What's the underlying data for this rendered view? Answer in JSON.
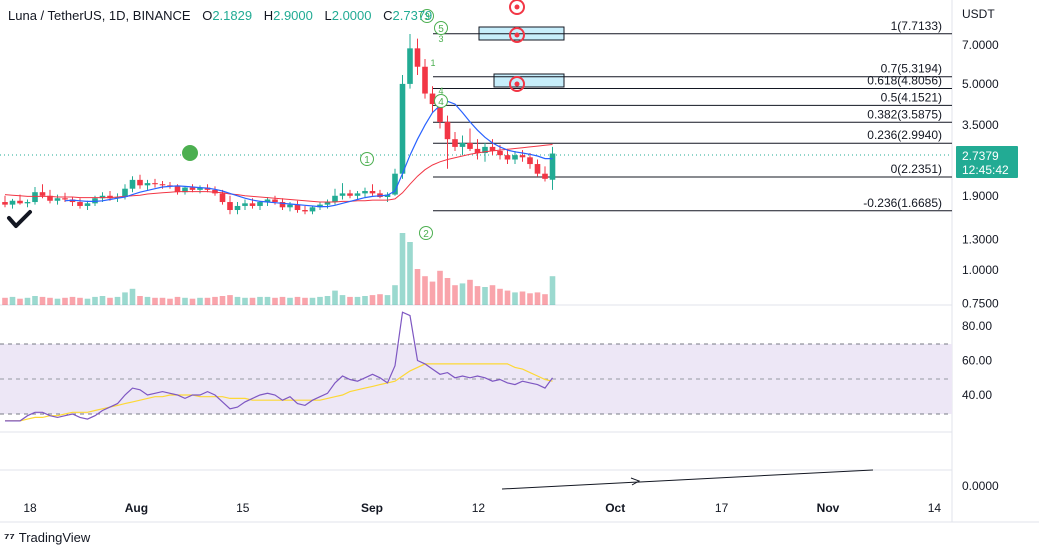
{
  "legend": {
    "symbol": "Luna / TetherUS, 1D, BINANCE",
    "open_label": "O",
    "open": "2.1829",
    "high_label": "H",
    "high": "2.9000",
    "low_label": "L",
    "low": "2.0000",
    "close_label": "C",
    "close": "2.7379"
  },
  "branding": {
    "name": "TradingView"
  },
  "price_badge": {
    "price": "2.7379",
    "countdown": "12:45:42"
  },
  "currency": "USDT",
  "colors": {
    "up": "#22ab94",
    "down": "#f23645",
    "blue_ma": "#2962ff",
    "red_ma": "#f23645",
    "rsi": "#7e57c2",
    "rsi_ma": "#fdd835",
    "rsi_band": "#ede7f6",
    "fib_box": "#c7eefb"
  },
  "chart_data": {
    "type": "candlestick",
    "title": "Luna / TetherUS, 1D, BINANCE",
    "price_axis_ticks": [
      "7.0000",
      "5.0000",
      "3.5000",
      "2.7379",
      "1.9000",
      "1.3000",
      "1.0000",
      "0.7500"
    ],
    "price_ticks_numeric": [
      7.0,
      5.0,
      3.5,
      2.7379,
      1.9,
      1.3,
      1.0,
      0.75
    ],
    "rsi_axis_ticks": [
      "80.00",
      "60.00",
      "40.00"
    ],
    "rsi_ticks_numeric": [
      80,
      60,
      40
    ],
    "lower_axis_ticks": [
      "0.0000"
    ],
    "x_tick_labels": [
      "18",
      "Aug",
      "15",
      "Sep",
      "12",
      "Oct",
      "17",
      "Nov",
      "14"
    ],
    "x_tick_days": [
      0,
      14,
      28,
      45,
      59,
      77,
      91,
      105,
      119
    ],
    "fib_levels": [
      {
        "label": "1(7.7133)",
        "value": 7.7133
      },
      {
        "label": "0.7(5.3194)",
        "value": 5.3194
      },
      {
        "label": "0.618(4.8056)",
        "value": 4.8056
      },
      {
        "label": "0.5(4.1521)",
        "value": 4.1521
      },
      {
        "label": "0.382(3.5875)",
        "value": 3.5875
      },
      {
        "label": "0.236(2.9940)",
        "value": 2.994
      },
      {
        "label": "0(2.2351)",
        "value": 2.2351
      },
      {
        "label": "-0.236(1.6685)",
        "value": 1.6685
      }
    ],
    "wave_labels": [
      "1",
      "2",
      "3",
      "4",
      "5",
      "3",
      "4",
      "1"
    ],
    "candles": [
      {
        "o": 1.8,
        "h": 1.9,
        "l": 1.72,
        "c": 1.76
      },
      {
        "o": 1.76,
        "h": 1.85,
        "l": 1.7,
        "c": 1.82
      },
      {
        "o": 1.82,
        "h": 1.92,
        "l": 1.76,
        "c": 1.78
      },
      {
        "o": 1.78,
        "h": 1.84,
        "l": 1.72,
        "c": 1.8
      },
      {
        "o": 1.8,
        "h": 2.05,
        "l": 1.76,
        "c": 1.96
      },
      {
        "o": 1.96,
        "h": 2.1,
        "l": 1.86,
        "c": 1.9
      },
      {
        "o": 1.9,
        "h": 2.0,
        "l": 1.78,
        "c": 1.82
      },
      {
        "o": 1.82,
        "h": 1.92,
        "l": 1.76,
        "c": 1.86
      },
      {
        "o": 1.86,
        "h": 1.95,
        "l": 1.8,
        "c": 1.84
      },
      {
        "o": 1.84,
        "h": 1.88,
        "l": 1.74,
        "c": 1.8
      },
      {
        "o": 1.8,
        "h": 1.86,
        "l": 1.7,
        "c": 1.74
      },
      {
        "o": 1.74,
        "h": 1.82,
        "l": 1.68,
        "c": 1.78
      },
      {
        "o": 1.78,
        "h": 1.9,
        "l": 1.74,
        "c": 1.86
      },
      {
        "o": 1.86,
        "h": 1.96,
        "l": 1.8,
        "c": 1.9
      },
      {
        "o": 1.9,
        "h": 1.98,
        "l": 1.82,
        "c": 1.86
      },
      {
        "o": 1.86,
        "h": 1.94,
        "l": 1.8,
        "c": 1.88
      },
      {
        "o": 1.88,
        "h": 2.1,
        "l": 1.84,
        "c": 2.02
      },
      {
        "o": 2.02,
        "h": 2.25,
        "l": 1.96,
        "c": 2.18
      },
      {
        "o": 2.18,
        "h": 2.28,
        "l": 2.02,
        "c": 2.08
      },
      {
        "o": 2.08,
        "h": 2.18,
        "l": 2.0,
        "c": 2.12
      },
      {
        "o": 2.12,
        "h": 2.2,
        "l": 2.04,
        "c": 2.1
      },
      {
        "o": 2.1,
        "h": 2.16,
        "l": 2.02,
        "c": 2.08
      },
      {
        "o": 2.08,
        "h": 2.14,
        "l": 2.02,
        "c": 2.06
      },
      {
        "o": 2.06,
        "h": 2.1,
        "l": 1.92,
        "c": 1.96
      },
      {
        "o": 1.96,
        "h": 2.06,
        "l": 1.92,
        "c": 2.04
      },
      {
        "o": 2.04,
        "h": 2.1,
        "l": 1.96,
        "c": 2.0
      },
      {
        "o": 2.0,
        "h": 2.08,
        "l": 1.94,
        "c": 2.04
      },
      {
        "o": 2.04,
        "h": 2.1,
        "l": 1.96,
        "c": 2.0
      },
      {
        "o": 2.0,
        "h": 2.06,
        "l": 1.9,
        "c": 1.94
      },
      {
        "o": 1.94,
        "h": 2.0,
        "l": 1.76,
        "c": 1.8
      },
      {
        "o": 1.8,
        "h": 1.9,
        "l": 1.62,
        "c": 1.68
      },
      {
        "o": 1.68,
        "h": 1.8,
        "l": 1.62,
        "c": 1.74
      },
      {
        "o": 1.74,
        "h": 1.84,
        "l": 1.68,
        "c": 1.78
      },
      {
        "o": 1.78,
        "h": 1.86,
        "l": 1.7,
        "c": 1.74
      },
      {
        "o": 1.74,
        "h": 1.82,
        "l": 1.68,
        "c": 1.8
      },
      {
        "o": 1.8,
        "h": 1.88,
        "l": 1.74,
        "c": 1.84
      },
      {
        "o": 1.84,
        "h": 1.9,
        "l": 1.76,
        "c": 1.8
      },
      {
        "o": 1.8,
        "h": 1.86,
        "l": 1.68,
        "c": 1.72
      },
      {
        "o": 1.72,
        "h": 1.8,
        "l": 1.66,
        "c": 1.76
      },
      {
        "o": 1.76,
        "h": 1.82,
        "l": 1.64,
        "c": 1.68
      },
      {
        "o": 1.68,
        "h": 1.74,
        "l": 1.62,
        "c": 1.66
      },
      {
        "o": 1.66,
        "h": 1.74,
        "l": 1.62,
        "c": 1.72
      },
      {
        "o": 1.72,
        "h": 1.8,
        "l": 1.68,
        "c": 1.76
      },
      {
        "o": 1.76,
        "h": 1.84,
        "l": 1.7,
        "c": 1.8
      },
      {
        "o": 1.8,
        "h": 2.02,
        "l": 1.76,
        "c": 1.9
      },
      {
        "o": 1.9,
        "h": 2.12,
        "l": 1.84,
        "c": 1.94
      },
      {
        "o": 1.94,
        "h": 2.0,
        "l": 1.86,
        "c": 1.9
      },
      {
        "o": 1.9,
        "h": 1.98,
        "l": 1.84,
        "c": 1.94
      },
      {
        "o": 1.94,
        "h": 2.04,
        "l": 1.88,
        "c": 1.98
      },
      {
        "o": 1.98,
        "h": 2.1,
        "l": 1.9,
        "c": 1.94
      },
      {
        "o": 1.94,
        "h": 2.0,
        "l": 1.86,
        "c": 1.88
      },
      {
        "o": 1.88,
        "h": 1.96,
        "l": 1.8,
        "c": 1.92
      },
      {
        "o": 1.92,
        "h": 2.4,
        "l": 1.9,
        "c": 2.3
      },
      {
        "o": 2.3,
        "h": 5.4,
        "l": 2.2,
        "c": 5.0
      },
      {
        "o": 5.0,
        "h": 7.7,
        "l": 4.8,
        "c": 6.8
      },
      {
        "o": 6.8,
        "h": 7.4,
        "l": 5.4,
        "c": 5.8
      },
      {
        "o": 5.8,
        "h": 6.2,
        "l": 4.4,
        "c": 4.6
      },
      {
        "o": 4.6,
        "h": 4.9,
        "l": 3.9,
        "c": 4.2
      },
      {
        "o": 4.2,
        "h": 4.4,
        "l": 3.4,
        "c": 3.6
      },
      {
        "o": 3.6,
        "h": 3.8,
        "l": 2.4,
        "c": 3.1
      },
      {
        "o": 3.1,
        "h": 3.3,
        "l": 2.8,
        "c": 2.9
      },
      {
        "o": 2.9,
        "h": 3.2,
        "l": 2.7,
        "c": 3.0
      },
      {
        "o": 3.0,
        "h": 3.4,
        "l": 2.8,
        "c": 2.85
      },
      {
        "o": 2.85,
        "h": 3.1,
        "l": 2.6,
        "c": 2.75
      },
      {
        "o": 2.75,
        "h": 3.0,
        "l": 2.55,
        "c": 2.9
      },
      {
        "o": 2.9,
        "h": 3.1,
        "l": 2.7,
        "c": 2.8
      },
      {
        "o": 2.8,
        "h": 2.95,
        "l": 2.6,
        "c": 2.7
      },
      {
        "o": 2.7,
        "h": 2.85,
        "l": 2.5,
        "c": 2.6
      },
      {
        "o": 2.6,
        "h": 2.8,
        "l": 2.5,
        "c": 2.7
      },
      {
        "o": 2.7,
        "h": 2.82,
        "l": 2.55,
        "c": 2.65
      },
      {
        "o": 2.65,
        "h": 2.75,
        "l": 2.4,
        "c": 2.5
      },
      {
        "o": 2.5,
        "h": 2.6,
        "l": 2.25,
        "c": 2.3
      },
      {
        "o": 2.3,
        "h": 2.45,
        "l": 2.15,
        "c": 2.2
      },
      {
        "o": 2.1829,
        "h": 2.9,
        "l": 2.0,
        "c": 2.7379
      }
    ],
    "volume": [
      0.8,
      0.9,
      0.7,
      0.8,
      1.0,
      0.9,
      0.8,
      0.7,
      0.8,
      0.9,
      0.8,
      0.7,
      0.9,
      1.0,
      0.8,
      0.9,
      1.4,
      1.8,
      1.0,
      0.9,
      0.8,
      0.8,
      0.7,
      0.9,
      0.8,
      0.7,
      0.8,
      0.8,
      0.9,
      1.0,
      1.1,
      0.9,
      0.8,
      0.8,
      0.9,
      0.9,
      0.8,
      0.9,
      0.8,
      0.9,
      0.8,
      0.8,
      0.9,
      1.0,
      1.6,
      1.1,
      0.9,
      0.9,
      1.0,
      1.1,
      1.2,
      1.1,
      2.2,
      8.0,
      7.0,
      4.0,
      3.2,
      2.6,
      3.8,
      3.0,
      2.2,
      2.4,
      2.8,
      2.1,
      2.0,
      2.2,
      1.8,
      1.6,
      1.4,
      1.5,
      1.3,
      1.4,
      1.2,
      3.2
    ],
    "rsi": [
      25,
      25,
      25,
      28,
      30,
      30,
      28,
      27,
      28,
      29,
      27,
      26,
      28,
      31,
      33,
      35,
      40,
      44,
      43,
      40,
      41,
      42,
      41,
      40,
      38,
      40,
      40,
      42,
      40,
      36,
      32,
      33,
      36,
      38,
      40,
      41,
      40,
      37,
      39,
      35,
      34,
      37,
      39,
      41,
      47,
      51,
      49,
      48,
      50,
      52,
      50,
      47,
      57,
      88,
      86,
      60,
      58,
      55,
      52,
      53,
      50,
      51,
      50,
      51,
      50,
      48,
      49,
      47,
      46,
      48,
      47,
      46,
      44,
      50
    ],
    "rsi_ma": [
      25,
      25,
      25,
      26,
      27,
      27,
      28,
      28,
      29,
      30,
      30,
      30,
      31,
      32,
      33,
      34,
      35,
      36,
      37,
      38,
      39,
      39,
      40,
      40,
      40,
      40,
      39,
      39,
      39,
      39,
      38,
      38,
      38,
      37,
      37,
      37,
      37,
      37,
      37,
      37,
      37,
      37,
      37,
      38,
      39,
      40,
      42,
      43,
      44,
      45,
      46,
      47,
      48,
      51,
      54,
      56,
      58,
      58,
      58,
      58,
      58,
      58,
      58,
      58,
      58,
      58,
      58,
      58,
      56,
      55,
      53,
      51,
      49,
      48
    ],
    "blue_ma": [
      null,
      null,
      null,
      null,
      null,
      null,
      null,
      null,
      1.82,
      1.83,
      1.82,
      1.81,
      1.81,
      1.82,
      1.84,
      1.86,
      1.88,
      1.92,
      1.96,
      1.99,
      2.02,
      2.05,
      2.06,
      2.07,
      2.06,
      2.05,
      2.04,
      2.03,
      2.01,
      1.98,
      1.94,
      1.9,
      1.86,
      1.83,
      1.81,
      1.8,
      1.79,
      1.78,
      1.77,
      1.76,
      1.75,
      1.74,
      1.73,
      1.73,
      1.75,
      1.78,
      1.81,
      1.84,
      1.87,
      1.89,
      1.9,
      1.91,
      1.98,
      2.3,
      2.7,
      3.1,
      3.5,
      3.9,
      4.15,
      4.3,
      4.2,
      3.9,
      3.6,
      3.35,
      3.15,
      3.0,
      2.9,
      2.82,
      2.78,
      2.75,
      2.72,
      2.68,
      2.62,
      2.62
    ],
    "red_ma": [
      1.92,
      1.91,
      1.9,
      1.89,
      1.89,
      1.89,
      1.89,
      1.88,
      1.88,
      1.88,
      1.87,
      1.87,
      1.87,
      1.87,
      1.87,
      1.88,
      1.89,
      1.9,
      1.91,
      1.93,
      1.94,
      1.95,
      1.96,
      1.97,
      1.97,
      1.97,
      1.97,
      1.97,
      1.96,
      1.95,
      1.93,
      1.92,
      1.9,
      1.89,
      1.88,
      1.87,
      1.86,
      1.85,
      1.84,
      1.83,
      1.82,
      1.81,
      1.8,
      1.8,
      1.8,
      1.81,
      1.81,
      1.82,
      1.82,
      1.83,
      1.83,
      1.83,
      1.85,
      1.95,
      2.1,
      2.25,
      2.38,
      2.48,
      2.55,
      2.6,
      2.64,
      2.68,
      2.72,
      2.75,
      2.78,
      2.8,
      2.82,
      2.84,
      2.86,
      2.88,
      2.9,
      2.92,
      2.94,
      2.96
    ]
  }
}
